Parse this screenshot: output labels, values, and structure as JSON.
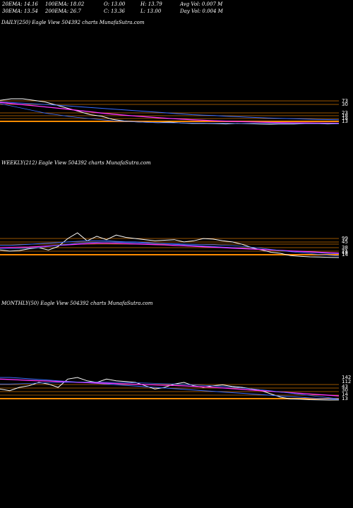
{
  "header": {
    "ema20": "20EMA: 14.16",
    "ema100": "100EMA: 18.02",
    "open": "O: 13.00",
    "high": "H: 13.79",
    "avg_vol": "Avg Vol: 0.007  M",
    "ema30": "30EMA: 13.54",
    "ema200": "200EMA: 26.7",
    "close": "C: 13.36",
    "low": "L: 13.00",
    "day_vol": "Day Vol: 0.004  M"
  },
  "chart_data": [
    {
      "type": "line",
      "title": "DAILY(250) Eagle  View  504392  charts MunafaSutra.com",
      "tick_labels": [
        "73",
        "30",
        "23",
        "18",
        "14",
        "13"
      ],
      "colors": {
        "price": "#ffffff",
        "ema_blue": "#3a6cff",
        "ema_magenta": "#ff33ff",
        "levels": "#ff8c00"
      },
      "series": [
        {
          "values": [
            28,
            29,
            29,
            28,
            27,
            25,
            23,
            21,
            19,
            18,
            16,
            15,
            14.5,
            14.2,
            14,
            14.3,
            13.8,
            13.5,
            13.6,
            13.4,
            13.2,
            13.5,
            13.3,
            13.1,
            13,
            13.2,
            13.1,
            13.3,
            13.4,
            13.2,
            13.36
          ]
        },
        {
          "values": [
            27,
            26.6,
            26.2,
            25.8,
            25.4,
            25,
            24.5,
            24,
            23.5,
            23,
            22.5,
            22,
            21.5,
            21,
            20.5,
            20,
            19.5,
            19,
            18.7,
            18.4,
            18,
            17.7,
            17.4,
            17.1,
            16.8,
            16.6,
            16.4,
            16.2,
            16,
            15.9,
            15.8
          ]
        },
        {
          "values": [
            26.7,
            26,
            25.3,
            24.6,
            23.9,
            23.2,
            22.4,
            21.6,
            20.8,
            20,
            19.3,
            18.7,
            18.1,
            17.6,
            17.1,
            16.6,
            16.2,
            15.8,
            15.5,
            15.2,
            14.9,
            14.7,
            14.5,
            14.3,
            14.1,
            14,
            13.9,
            13.8,
            13.7,
            13.65,
            13.6
          ]
        },
        {
          "values": [
            26,
            24.5,
            23,
            21.5,
            20,
            19,
            18,
            17.2,
            16.5,
            15.8,
            15.2,
            14.8,
            14.5,
            14.2,
            14,
            13.9,
            13.8,
            13.7,
            13.65,
            13.6,
            13.55,
            13.5,
            13.5,
            13.45,
            13.45,
            13.4,
            13.4,
            13.4,
            13.38,
            13.37,
            13.36
          ]
        }
      ]
    },
    {
      "type": "line",
      "title": "WEEKLY(212) Eagle  View  504392  charts MunafaSutra.com",
      "tick_labels": [
        "99",
        "45",
        "38",
        "21",
        "18",
        "14"
      ],
      "colors": {
        "price": "#ffffff",
        "ema_blue": "#3a6cff",
        "ema_magenta": "#ff33ff",
        "levels": "#ff8c00"
      },
      "series": [
        {
          "values": [
            20,
            19,
            19.5,
            21,
            22,
            20,
            23,
            30,
            35,
            28,
            32,
            29,
            33,
            31,
            30,
            29,
            28,
            28.5,
            29,
            27,
            28,
            30,
            29.5,
            28,
            27,
            25,
            22,
            20,
            18,
            17,
            15,
            14.5,
            14,
            13.8,
            13.5,
            13.36
          ]
        },
        {
          "values": [
            24,
            24,
            24.5,
            25,
            25.5,
            26,
            26.5,
            27,
            27.5,
            28,
            28,
            28,
            27.5,
            27,
            27,
            26.5,
            26,
            25.5,
            25,
            24.5,
            24,
            23.5,
            23,
            22.5,
            22,
            21.5,
            21,
            20.5,
            20,
            19.5,
            19,
            18.5,
            18,
            17.5,
            17,
            16.8
          ]
        },
        {
          "values": [
            22,
            22.2,
            22.4,
            22.6,
            23,
            23.5,
            24,
            24.5,
            25,
            25.5,
            26,
            26,
            25.8,
            25.5,
            25.2,
            25,
            24.7,
            24.4,
            24,
            23.6,
            23.2,
            22.8,
            22.4,
            22,
            21.6,
            21.2,
            20.8,
            20.4,
            20,
            19.6,
            19.2,
            18.8,
            18.4,
            18,
            17.6,
            17.3
          ]
        },
        {
          "values": [
            21,
            21,
            21.2,
            21.5,
            22,
            23,
            24,
            25,
            26,
            26.5,
            26.8,
            27,
            26.8,
            26.5,
            26.2,
            26,
            25.8,
            25.6,
            25.5,
            25.2,
            25,
            24.8,
            24.6,
            24.2,
            23.8,
            23.2,
            22.4,
            21.5,
            20.5,
            19.5,
            18.5,
            17.6,
            16.8,
            16,
            15.3,
            14.7
          ]
        }
      ]
    },
    {
      "type": "line",
      "title": "MONTHLY(50) Eagle  View  504392  charts MunafaSutra.com",
      "tick_labels": [
        "142",
        "112",
        "43",
        "30",
        "14",
        "13"
      ],
      "colors": {
        "price": "#ffffff",
        "ema_blue": "#3a6cff",
        "ema_magenta": "#ff33ff",
        "levels": "#ff8c00"
      },
      "series": [
        {
          "values": [
            20,
            19,
            21,
            22,
            24,
            23,
            21,
            26,
            27,
            25,
            24,
            26,
            25,
            24.5,
            24,
            22,
            20,
            21,
            23,
            24,
            22,
            21,
            22,
            22.5,
            21.5,
            21,
            20,
            19,
            17,
            15,
            14,
            13.8,
            13.5,
            13.4,
            13.3,
            13.36
          ]
        },
        {
          "values": [
            27,
            27,
            26.6,
            26.2,
            25.8,
            25.4,
            25,
            24.6,
            24.2,
            23.8,
            23.4,
            23,
            22.6,
            22.2,
            21.8,
            21.4,
            21,
            20.6,
            20.2,
            19.8,
            19.4,
            19,
            18.6,
            18.2,
            17.8,
            17.4,
            17,
            16.6,
            16.2,
            15.8,
            15.4,
            15,
            14.6,
            14.3,
            14,
            13.8
          ]
        },
        {
          "values": [
            26,
            25.8,
            25.5,
            25.2,
            25,
            24.8,
            24.5,
            24.3,
            24.1,
            23.9,
            23.7,
            23.5,
            23.3,
            23.1,
            22.9,
            22.7,
            22.5,
            22.3,
            22.1,
            21.9,
            21.6,
            21.3,
            21,
            20.6,
            20.2,
            19.8,
            19.4,
            19,
            18.6,
            18.2,
            17.8,
            17.4,
            17,
            16.6,
            16.2,
            15.8
          ]
        },
        {
          "values": [
            23,
            23,
            23.2,
            23.4,
            23.6,
            23.8,
            24,
            24.1,
            24.2,
            24.2,
            24.2,
            24.1,
            24,
            23.9,
            23.8,
            23.6,
            23.4,
            23.2,
            23,
            22.8,
            22.5,
            22.2,
            21.9,
            21.5,
            21.1,
            20.6,
            20.1,
            19.5,
            18.9,
            18.2,
            17.5,
            16.8,
            16.1,
            15.4,
            14.7,
            14
          ]
        }
      ]
    }
  ]
}
